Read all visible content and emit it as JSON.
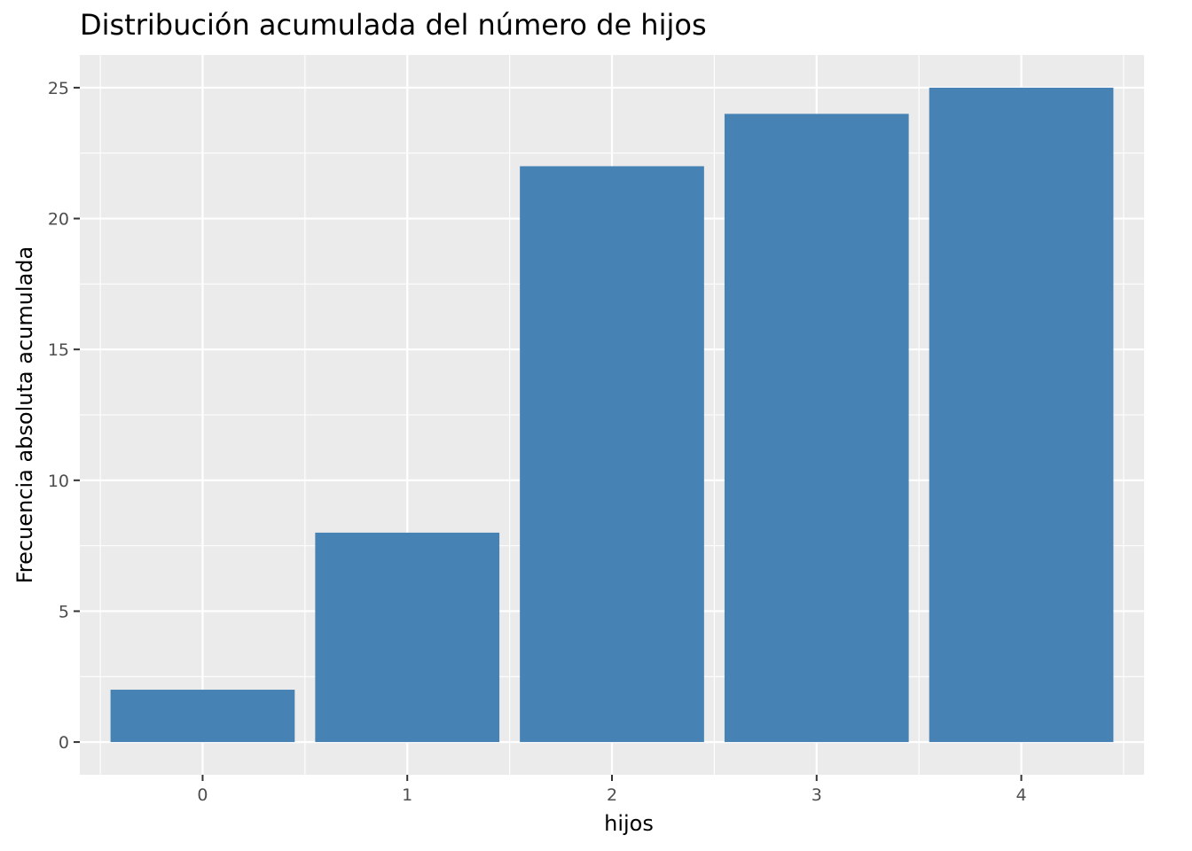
{
  "chart_data": {
    "type": "bar",
    "title": "Distribución acumulada del número de hijos",
    "xlabel": "hijos",
    "ylabel": "Frecuencia absoluta acumulada",
    "categories": [
      "0",
      "1",
      "2",
      "3",
      "4"
    ],
    "values": [
      2,
      8,
      22,
      24,
      25
    ],
    "ylim": [
      -1.25,
      26.25
    ],
    "yticks": [
      0,
      5,
      10,
      15,
      20,
      25
    ],
    "grid": true,
    "bar_color": "#4682B4",
    "panel_color": "#EBEBEB",
    "grid_color": "#FFFFFF"
  }
}
